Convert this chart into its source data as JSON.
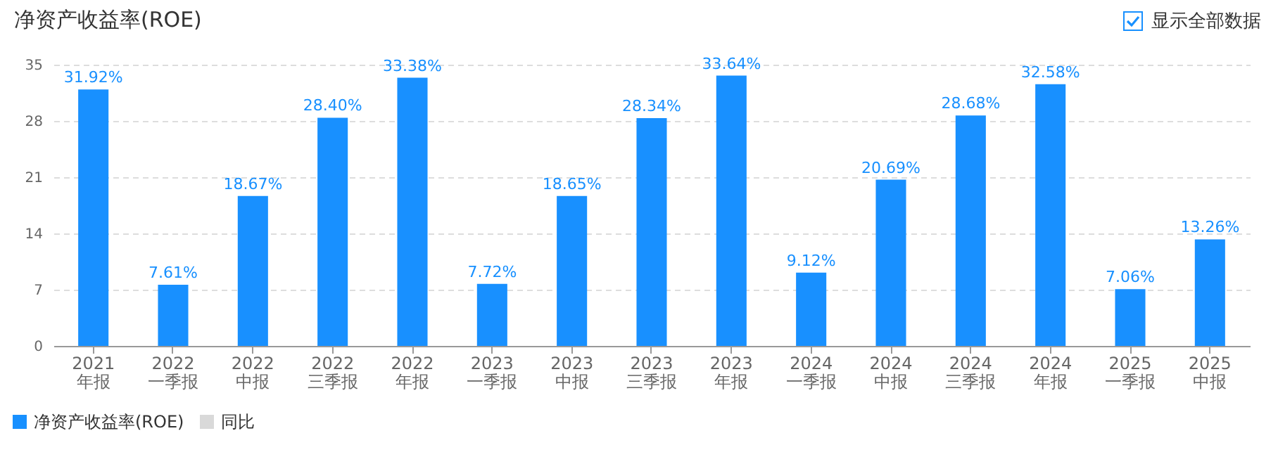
{
  "chart_data": {
    "type": "bar",
    "title": "净资产收益率(ROE)",
    "categories": [
      "2021\n年报",
      "2022\n一季报",
      "2022\n中报",
      "2022\n三季报",
      "2022\n年报",
      "2023\n一季报",
      "2023\n中报",
      "2023\n三季报",
      "2023\n年报",
      "2024\n一季报",
      "2024\n中报",
      "2024\n三季报",
      "2024\n年报",
      "2025\n一季报",
      "2025\n中报"
    ],
    "series": [
      {
        "name": "净资产收益率(ROE)",
        "color": "#1890ff",
        "values": [
          31.92,
          7.61,
          18.67,
          28.4,
          33.38,
          7.72,
          18.65,
          28.34,
          33.64,
          9.12,
          20.69,
          28.68,
          32.58,
          7.06,
          13.26
        ],
        "value_labels": [
          "31.92%",
          "7.61%",
          "18.67%",
          "28.40%",
          "33.38%",
          "7.72%",
          "18.65%",
          "28.34%",
          "33.64%",
          "9.12%",
          "20.69%",
          "28.68%",
          "32.58%",
          "7.06%",
          "13.26%"
        ]
      },
      {
        "name": "同比",
        "color": "#d9d9d9",
        "values": [
          null,
          null,
          null,
          null,
          null,
          null,
          null,
          null,
          null,
          null,
          null,
          null,
          null,
          null,
          null
        ]
      }
    ],
    "ylim": [
      0,
      35
    ],
    "yticks": [
      0,
      7,
      14,
      21,
      28,
      35
    ],
    "grid": "y",
    "legend": "bottom left",
    "annotations": [
      "显示全部数据"
    ]
  }
}
